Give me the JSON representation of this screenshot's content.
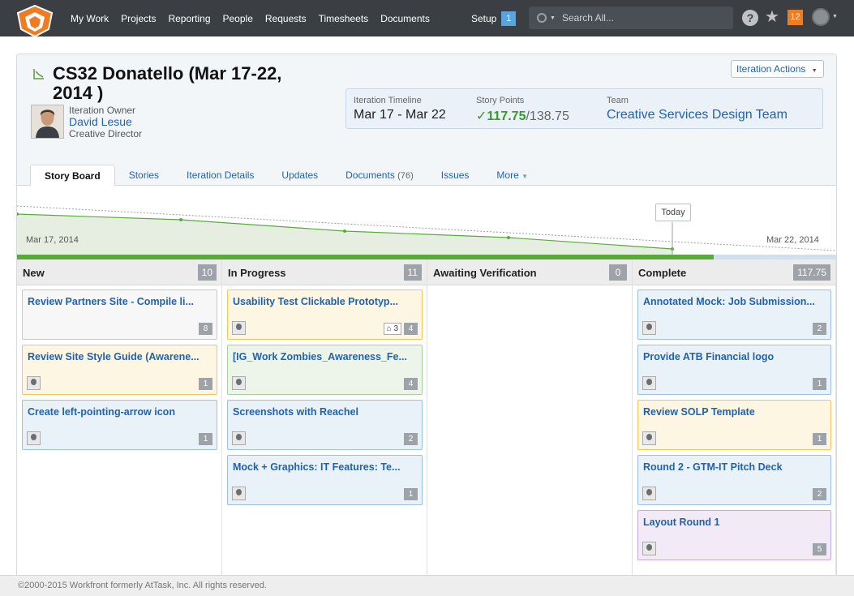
{
  "nav": {
    "items": [
      "My Work",
      "Projects",
      "Reporting",
      "People",
      "Requests",
      "Timesheets",
      "Documents"
    ],
    "setup_label": "Setup",
    "setup_badge": "1",
    "search_placeholder": "Search All...",
    "notifications": "12",
    "brand_color": "#ef7b22"
  },
  "header": {
    "title": "CS32 Donatello (Mar 17-22, 2014 )",
    "owner_label": "Iteration Owner",
    "owner_name": "David Lesue",
    "owner_role": "Creative Director",
    "actions_label": "Iteration Actions",
    "timeline_label": "Iteration Timeline",
    "timeline_value": "Mar 17 - Mar 22",
    "points_label": "Story Points",
    "points_done": "117.75",
    "points_total": "/138.75",
    "team_label": "Team",
    "team_value": "Creative Services Design Team"
  },
  "tabs": [
    {
      "label": "Story Board"
    },
    {
      "label": "Stories"
    },
    {
      "label": "Iteration Details"
    },
    {
      "label": "Updates"
    },
    {
      "label": "Documents",
      "count": "(76)"
    },
    {
      "label": "Issues"
    },
    {
      "label": "More"
    }
  ],
  "burndown": {
    "start_label": "Mar 17, 2014",
    "end_label": "Mar 22, 2014",
    "today_label": "Today",
    "progress_fraction": 0.85
  },
  "columns": [
    {
      "title": "New",
      "count": "10",
      "cards": [
        {
          "title": "Review Partners Site - Compile li...",
          "points": "8",
          "color": "gray",
          "avatar": false
        },
        {
          "title": "Review Site Style Guide (Awarene...",
          "points": "1",
          "color": "yellow",
          "avatar": true
        },
        {
          "title": "Create left-pointing-arrow icon",
          "points": "1",
          "color": "blue",
          "avatar": true
        }
      ]
    },
    {
      "title": "In Progress",
      "count": "11",
      "cards": [
        {
          "title": "Usability Test Clickable Prototyp...",
          "points": "4",
          "color": "yellow",
          "avatar": true,
          "sub": "3"
        },
        {
          "title": "[IG_Work Zombies_Awareness_Fe...",
          "points": "4",
          "color": "green",
          "avatar": true
        },
        {
          "title": "Screenshots with Reachel",
          "points": "2",
          "color": "blue",
          "avatar": true
        },
        {
          "title": "Mock + Graphics: IT Features: Te...",
          "points": "1",
          "color": "blue",
          "avatar": true
        }
      ]
    },
    {
      "title": "Awaiting Verification",
      "count": "0",
      "cards": []
    },
    {
      "title": "Complete",
      "count": "117.75",
      "cards": [
        {
          "title": "Annotated Mock: Job Submission...",
          "points": "2",
          "color": "blue",
          "avatar": true
        },
        {
          "title": "Provide ATB Financial logo",
          "points": "1",
          "color": "blue",
          "avatar": true
        },
        {
          "title": "Review SOLP Template",
          "points": "1",
          "color": "yellow",
          "avatar": true
        },
        {
          "title": "Round 2 - GTM-IT Pitch Deck",
          "points": "2",
          "color": "blue",
          "avatar": true
        },
        {
          "title": "Layout Round 1",
          "points": "5",
          "color": "purple",
          "avatar": true
        }
      ]
    }
  ],
  "footer": {
    "text": "©2000-2015 Workfront formerly AtTask, Inc. All rights reserved."
  }
}
